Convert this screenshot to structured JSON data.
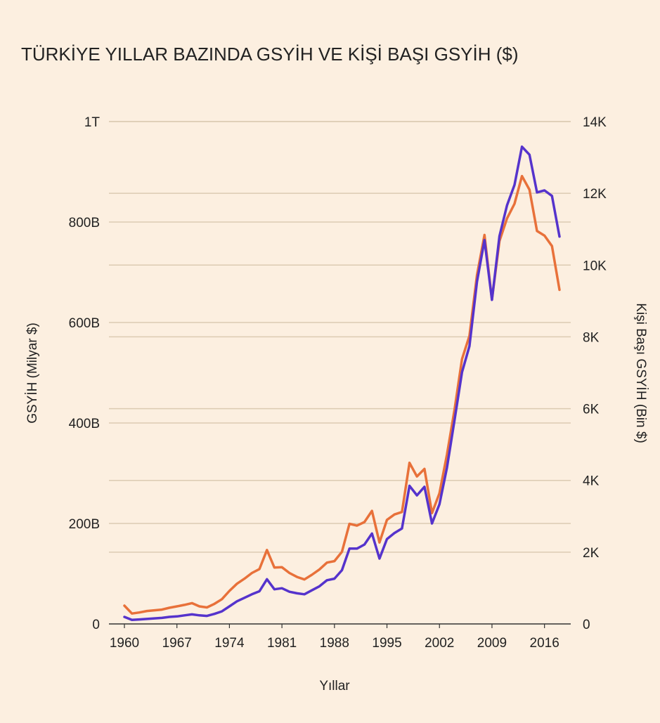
{
  "chart_data": {
    "type": "line",
    "title": "TÜRKİYE YILLAR BAZINDA GSYİH VE KİŞİ BAŞI GSYİH ($)",
    "xlabel": "Yıllar",
    "ylabel_left": "GSYİH (Milyar $)",
    "ylabel_right": "Kişi Başı GSYİH (Bin $)",
    "x_ticks": [
      1960,
      1967,
      1974,
      1981,
      1988,
      1995,
      2002,
      2009,
      2016
    ],
    "x_range": [
      1960,
      2018
    ],
    "y_left": {
      "range": [
        0,
        1000
      ],
      "ticks": [
        {
          "value": 0,
          "label": "0"
        },
        {
          "value": 200,
          "label": "200B"
        },
        {
          "value": 400,
          "label": "400B"
        },
        {
          "value": 600,
          "label": "600B"
        },
        {
          "value": 800,
          "label": "800B"
        },
        {
          "value": 1000,
          "label": "1T"
        }
      ]
    },
    "y_right": {
      "range": [
        0,
        14000
      ],
      "ticks": [
        {
          "value": 0,
          "label": "0"
        },
        {
          "value": 2000,
          "label": "2K"
        },
        {
          "value": 4000,
          "label": "4K"
        },
        {
          "value": 6000,
          "label": "6K"
        },
        {
          "value": 8000,
          "label": "8K"
        },
        {
          "value": 10000,
          "label": "10K"
        },
        {
          "value": 12000,
          "label": "12K"
        },
        {
          "value": 14000,
          "label": "14K"
        }
      ]
    },
    "series": [
      {
        "name": "GSYİH",
        "axis": "left",
        "color": "#5533cc",
        "x": [
          1960,
          1961,
          1962,
          1963,
          1964,
          1965,
          1966,
          1967,
          1968,
          1969,
          1970,
          1971,
          1972,
          1973,
          1974,
          1975,
          1976,
          1977,
          1978,
          1979,
          1980,
          1981,
          1982,
          1983,
          1984,
          1985,
          1986,
          1987,
          1988,
          1989,
          1990,
          1991,
          1992,
          1993,
          1994,
          1995,
          1996,
          1997,
          1998,
          1999,
          2000,
          2001,
          2002,
          2003,
          2004,
          2005,
          2006,
          2007,
          2008,
          2009,
          2010,
          2011,
          2012,
          2013,
          2014,
          2015,
          2016,
          2017,
          2018
        ],
        "values": [
          14,
          8,
          9,
          10,
          11,
          12,
          14,
          15,
          17,
          19,
          17,
          16,
          20,
          25,
          35,
          45,
          52,
          59,
          65,
          89,
          69,
          71,
          64,
          61,
          59,
          67,
          75,
          87,
          90,
          107,
          150,
          150,
          158,
          180,
          130,
          169,
          181,
          190,
          275,
          256,
          273,
          200,
          238,
          311,
          405,
          501,
          553,
          681,
          764,
          645,
          772,
          833,
          874,
          950,
          934,
          859,
          863,
          852,
          771
        ]
      },
      {
        "name": "Kişi Başı GSYİH",
        "axis": "right",
        "color": "#e8713a",
        "x": [
          1960,
          1961,
          1962,
          1963,
          1964,
          1965,
          1966,
          1967,
          1968,
          1969,
          1970,
          1971,
          1972,
          1973,
          1974,
          1975,
          1976,
          1977,
          1978,
          1979,
          1980,
          1981,
          1982,
          1983,
          1984,
          1985,
          1986,
          1987,
          1988,
          1989,
          1990,
          1991,
          1992,
          1993,
          1994,
          1995,
          1996,
          1997,
          1998,
          1999,
          2000,
          2001,
          2002,
          2003,
          2004,
          2005,
          2006,
          2007,
          2008,
          2009,
          2010,
          2011,
          2012,
          2013,
          2014,
          2015,
          2016,
          2017,
          2018
        ],
        "values": [
          510,
          290,
          320,
          360,
          380,
          400,
          450,
          490,
          530,
          580,
          490,
          460,
          560,
          690,
          920,
          1120,
          1260,
          1420,
          1530,
          2060,
          1570,
          1580,
          1420,
          1310,
          1240,
          1370,
          1520,
          1710,
          1750,
          2010,
          2790,
          2740,
          2840,
          3150,
          2270,
          2900,
          3050,
          3120,
          4490,
          4110,
          4320,
          3090,
          3640,
          4720,
          5960,
          7380,
          8030,
          9720,
          10840,
          9040,
          10670,
          11300,
          11710,
          12480,
          12100,
          10950,
          10820,
          10530,
          9310
        ]
      }
    ]
  }
}
